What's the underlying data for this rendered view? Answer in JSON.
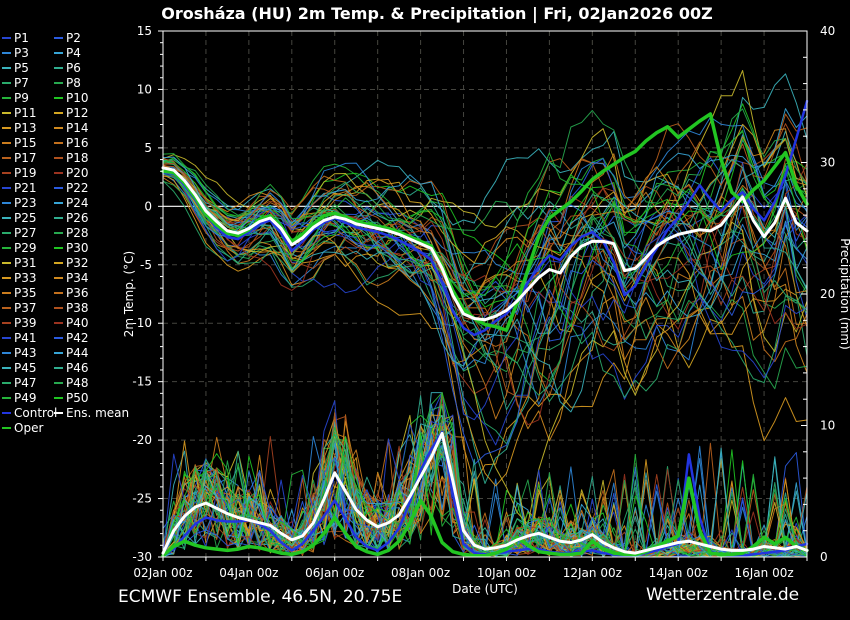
{
  "title": "Orosháza  (HU)  2m Temp. & Precipitation | Fri, 02Jan2026 00Z",
  "footer": {
    "left": "ECMWF Ensemble, 46.5N, 20.75E",
    "right": "Wetterzentrale.de"
  },
  "legend": {
    "member_labels": [
      "P1",
      "P2",
      "P3",
      "P4",
      "P5",
      "P6",
      "P7",
      "P8",
      "P9",
      "P10",
      "P11",
      "P12",
      "P13",
      "P14",
      "P15",
      "P16",
      "P17",
      "P18",
      "P19",
      "P20",
      "P21",
      "P22",
      "P23",
      "P24",
      "P25",
      "P26",
      "P27",
      "P28",
      "P29",
      "P30",
      "P31",
      "P32",
      "P33",
      "P34",
      "P35",
      "P36",
      "P37",
      "P38",
      "P39",
      "P40",
      "P41",
      "P42",
      "P43",
      "P44",
      "P45",
      "P46",
      "P47",
      "P48",
      "P49",
      "P50"
    ],
    "special": [
      {
        "label": "Control",
        "color": "#2235e0"
      },
      {
        "label": "Ens. mean",
        "color": "#ffffff"
      },
      {
        "label": "Oper",
        "color": "#22c522"
      }
    ]
  },
  "chart_data": {
    "type": "line",
    "title": "Orosháza  (HU)  2m Temp. & Precipitation | Fri, 02Jan2026 00Z",
    "xlabel": "Date (UTC)",
    "x_hours_step": 6,
    "x_hours_max": 360,
    "x_start": "02Jan2026 00Z",
    "x_tick_labels": [
      "02Jan 00z",
      "04Jan 00z",
      "06Jan 00z",
      "08Jan 00z",
      "10Jan 00z",
      "12Jan 00z",
      "14Jan 00z",
      "16Jan 00z"
    ],
    "x_tick_day_interval": 2,
    "grid": {
      "vertical_every_days": 1,
      "horizontal_every_degC": 5,
      "zero_line_degC": 0
    },
    "temp_axis": {
      "label": "2m Temp. (°C)",
      "min": -30,
      "max": 15,
      "major": 5,
      "minor": 1,
      "side": "left"
    },
    "precip_axis": {
      "label": "Precipitation (mm)",
      "min": 0,
      "max": 40,
      "major": 10,
      "minor": 2,
      "side": "right"
    },
    "member_colors": [
      "#2746d2",
      "#2b5be0",
      "#2e86d8",
      "#37a5d6",
      "#3ab3bd",
      "#30ae90",
      "#2aab6c",
      "#27a84f",
      "#25b43a",
      "#1fc522",
      "#c9b92b",
      "#d4a621",
      "#d89a20",
      "#d18a1f",
      "#cb7d1e",
      "#c3701d",
      "#ba611d",
      "#b0511e",
      "#a64120",
      "#9b3320"
    ],
    "series": [
      {
        "name": "Ens. mean temperature",
        "legend": "Ens. mean",
        "axis": "temp",
        "color": "#ffffff",
        "width": 3,
        "values": [
          3.3,
          3.1,
          2.2,
          1.0,
          -0.4,
          -1.3,
          -2.1,
          -2.3,
          -1.9,
          -1.3,
          -1.0,
          -1.9,
          -3.3,
          -2.7,
          -1.8,
          -1.2,
          -0.9,
          -1.1,
          -1.5,
          -1.7,
          -1.9,
          -2.1,
          -2.4,
          -2.8,
          -3.2,
          -3.6,
          -5.3,
          -7.6,
          -9.2,
          -9.6,
          -9.7,
          -9.4,
          -8.9,
          -8.1,
          -7.1,
          -6.1,
          -5.4,
          -5.7,
          -4.3,
          -3.4,
          -3.0,
          -3.0,
          -3.2,
          -5.5,
          -5.3,
          -4.4,
          -3.4,
          -2.8,
          -2.4,
          -2.2,
          -2.0,
          -2.1,
          -1.6,
          -0.4,
          0.8,
          -1.2,
          -2.6,
          -1.4,
          0.7,
          -1.4,
          -2.1
        ]
      },
      {
        "name": "Control temperature",
        "legend": "Control",
        "axis": "temp",
        "color": "#2235e0",
        "width": 2.5,
        "values": [
          2.9,
          2.8,
          1.8,
          0.6,
          -0.8,
          -1.8,
          -2.6,
          -2.8,
          -2.2,
          -1.5,
          -1.2,
          -2.3,
          -3.8,
          -3.0,
          -2.0,
          -1.4,
          -1.0,
          -1.4,
          -1.8,
          -2.0,
          -2.2,
          -2.5,
          -2.9,
          -3.4,
          -3.9,
          -4.6,
          -6.5,
          -9.0,
          -10.4,
          -11.0,
          -10.6,
          -9.8,
          -9.2,
          -8.0,
          -6.5,
          -5.2,
          -4.2,
          -4.6,
          -3.4,
          -2.6,
          -2.2,
          -3.0,
          -4.8,
          -7.6,
          -6.8,
          -5.0,
          -3.6,
          -2.0,
          -1.0,
          0.4,
          1.8,
          0.6,
          -0.4,
          0.6,
          1.2,
          -0.2,
          -1.2,
          0.4,
          2.6,
          5.8,
          9.0
        ]
      },
      {
        "name": "Oper temperature",
        "legend": "Oper",
        "axis": "temp",
        "color": "#22c522",
        "width": 3.5,
        "values": [
          3.0,
          2.9,
          2.0,
          0.8,
          -0.7,
          -1.6,
          -2.3,
          -2.5,
          -2.0,
          -1.1,
          -0.8,
          -1.7,
          -3.0,
          -2.4,
          -1.5,
          -0.8,
          -0.6,
          -0.9,
          -1.3,
          -1.5,
          -1.7,
          -1.9,
          -2.2,
          -2.6,
          -3.0,
          -3.4,
          -5.1,
          -7.2,
          -8.8,
          -9.6,
          -10.1,
          -10.3,
          -10.6,
          -8.2,
          -5.4,
          -2.6,
          -1.0,
          -0.3,
          0.4,
          1.3,
          2.3,
          3.0,
          3.6,
          4.2,
          4.7,
          5.6,
          6.3,
          6.8,
          5.9,
          6.6,
          7.3,
          7.9,
          4.0,
          1.2,
          0.4,
          1.4,
          2.2,
          3.4,
          4.6,
          1.8,
          0.2
        ]
      },
      {
        "name": "Ens. mean precipitation",
        "legend": "Ens. mean",
        "axis": "precip",
        "color": "#ffffff",
        "width": 3,
        "values": [
          0.3,
          2.0,
          3.1,
          3.8,
          4.1,
          3.7,
          3.3,
          3.0,
          2.8,
          2.6,
          2.4,
          1.8,
          1.3,
          1.6,
          2.6,
          4.4,
          6.4,
          5.0,
          3.6,
          2.8,
          2.3,
          2.6,
          3.2,
          4.6,
          6.1,
          7.6,
          9.4,
          5.8,
          2.0,
          0.9,
          0.6,
          0.7,
          0.9,
          1.3,
          1.6,
          1.8,
          1.5,
          1.2,
          1.1,
          1.3,
          1.7,
          1.1,
          0.7,
          0.4,
          0.3,
          0.5,
          0.7,
          0.9,
          1.1,
          1.2,
          1.0,
          0.8,
          0.6,
          0.5,
          0.5,
          0.6,
          0.8,
          0.7,
          0.6,
          0.8,
          0.5
        ]
      },
      {
        "name": "Control precipitation",
        "legend": "Control",
        "axis": "precip",
        "color": "#2235e0",
        "width": 2.5,
        "values": [
          0.1,
          0.6,
          1.6,
          2.5,
          3.0,
          2.8,
          2.7,
          2.7,
          2.8,
          2.5,
          2.0,
          1.1,
          0.5,
          1.0,
          2.0,
          3.1,
          4.3,
          2.9,
          1.5,
          0.8,
          0.5,
          1.1,
          2.2,
          4.2,
          6.6,
          8.2,
          9.5,
          4.8,
          1.0,
          0.3,
          0.2,
          0.3,
          0.4,
          0.5,
          0.6,
          0.6,
          0.4,
          0.3,
          0.3,
          0.4,
          0.5,
          0.3,
          0.2,
          0.1,
          0.2,
          0.3,
          0.5,
          0.8,
          1.0,
          7.8,
          3.0,
          0.4,
          0.2,
          0.1,
          0.1,
          0.2,
          0.3,
          0.4,
          0.5,
          0.8,
          1.0
        ]
      },
      {
        "name": "Oper precipitation",
        "legend": "Oper",
        "axis": "precip",
        "color": "#22c522",
        "width": 3.5,
        "values": [
          0.1,
          0.8,
          1.2,
          0.9,
          0.7,
          0.6,
          0.5,
          0.6,
          0.8,
          0.7,
          0.5,
          0.3,
          0.2,
          0.4,
          0.9,
          1.8,
          3.0,
          1.8,
          0.8,
          0.4,
          0.2,
          0.5,
          1.2,
          2.6,
          4.3,
          3.1,
          1.1,
          0.4,
          0.2,
          0.1,
          0.1,
          0.3,
          0.6,
          1.5,
          0.9,
          0.4,
          0.3,
          0.2,
          0.2,
          0.3,
          1.2,
          0.6,
          0.3,
          0.2,
          0.2,
          0.4,
          0.8,
          1.2,
          1.6,
          6.0,
          2.0,
          0.3,
          0.2,
          0.2,
          0.3,
          0.8,
          1.5,
          1.0,
          1.5,
          0.8,
          0.5
        ]
      }
    ],
    "ensemble": {
      "member_count": 50,
      "seed": 11,
      "temp_spread_daily": [
        0.7,
        1.5,
        2.0,
        2.5,
        2.8,
        3.0,
        3.5,
        4.5,
        5.5,
        6.0,
        5.5,
        5.0,
        5.5,
        6.0,
        6.0,
        6.0
      ],
      "cold_skew_daily": [
        1.0,
        1.1,
        1.2,
        1.2,
        1.2,
        1.2,
        1.3,
        1.6,
        1.8,
        1.8,
        1.6,
        1.5,
        1.5,
        1.4,
        1.4,
        1.4
      ],
      "precip_spike_amp_daily": [
        5,
        5,
        5,
        6,
        6,
        6,
        7,
        7,
        5,
        6,
        7,
        8,
        6,
        9,
        7,
        7
      ]
    }
  },
  "colors": {
    "background": "#000000",
    "text": "#ffffff",
    "grid": "#45453f",
    "zero_line": "#ffffff",
    "frame": "#ffffff"
  }
}
